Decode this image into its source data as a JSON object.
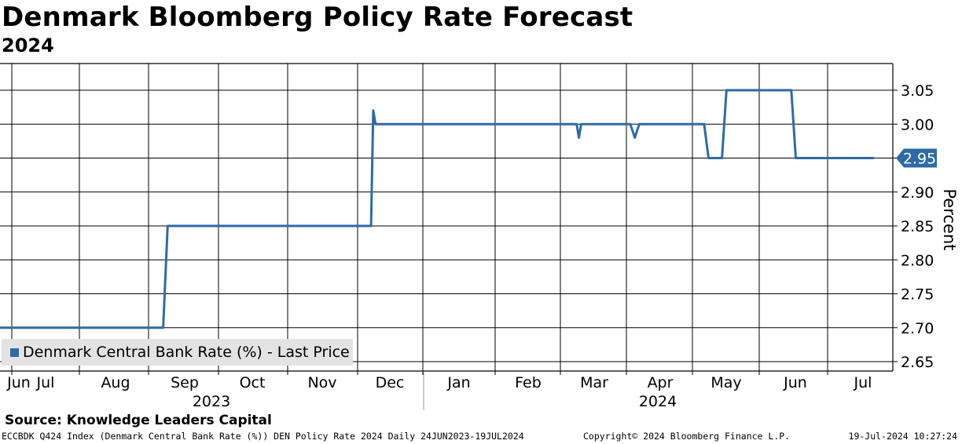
{
  "chart_data": {
    "type": "line",
    "title": "Denmark Bloomberg Policy Rate Forecast",
    "subtitle": "2024",
    "ylabel": "Percent",
    "ylim": [
      2.64,
      3.09
    ],
    "yticks": [
      "3.05",
      "3.00",
      "2.90",
      "2.85",
      "2.80",
      "2.75",
      "2.70",
      "2.65"
    ],
    "ytick_values": [
      3.05,
      3.0,
      2.9,
      2.85,
      2.8,
      2.75,
      2.7,
      2.65
    ],
    "hidden_gridline_values": [
      2.95
    ],
    "month_labels": [
      "Jun",
      "Jul",
      "Aug",
      "Sep",
      "Oct",
      "Nov",
      "Dec",
      "Jan",
      "Feb",
      "Mar",
      "Apr",
      "May",
      "Jun",
      "Jul"
    ],
    "year_labels": [
      "2023",
      "2024"
    ],
    "x_start": "2023-06-24",
    "x_end": "2024-07-19",
    "series": [
      {
        "name": "Denmark Central Bank Rate (%) - Last Price",
        "color": "#2f6aa6",
        "last_value": "2.95",
        "x": [
          "2023-06-24",
          "2023-09-05",
          "2023-09-07",
          "2023-12-07",
          "2023-12-08",
          "2023-12-09",
          "2024-03-08",
          "2024-03-09",
          "2024-03-10",
          "2024-04-01",
          "2024-04-03",
          "2024-04-05",
          "2024-05-04",
          "2024-05-06",
          "2024-05-12",
          "2024-05-14",
          "2024-06-12",
          "2024-06-14",
          "2024-07-19"
        ],
        "y": [
          2.7,
          2.7,
          2.85,
          2.85,
          3.02,
          3.0,
          3.0,
          2.98,
          3.0,
          3.0,
          2.98,
          3.0,
          3.0,
          2.95,
          2.95,
          3.05,
          3.05,
          2.95,
          2.95
        ]
      }
    ]
  },
  "source": "Source: Knowledge Leaders Capital",
  "footer": {
    "left": "ECCBDK Q424 Index (Denmark Central Bank Rate (%)) DEN Policy Rate 2024  Daily 24JUN2023-19JUL2024",
    "middle": "Copyright© 2024 Bloomberg Finance L.P.",
    "right": "19-Jul-2024 10:27:24"
  }
}
